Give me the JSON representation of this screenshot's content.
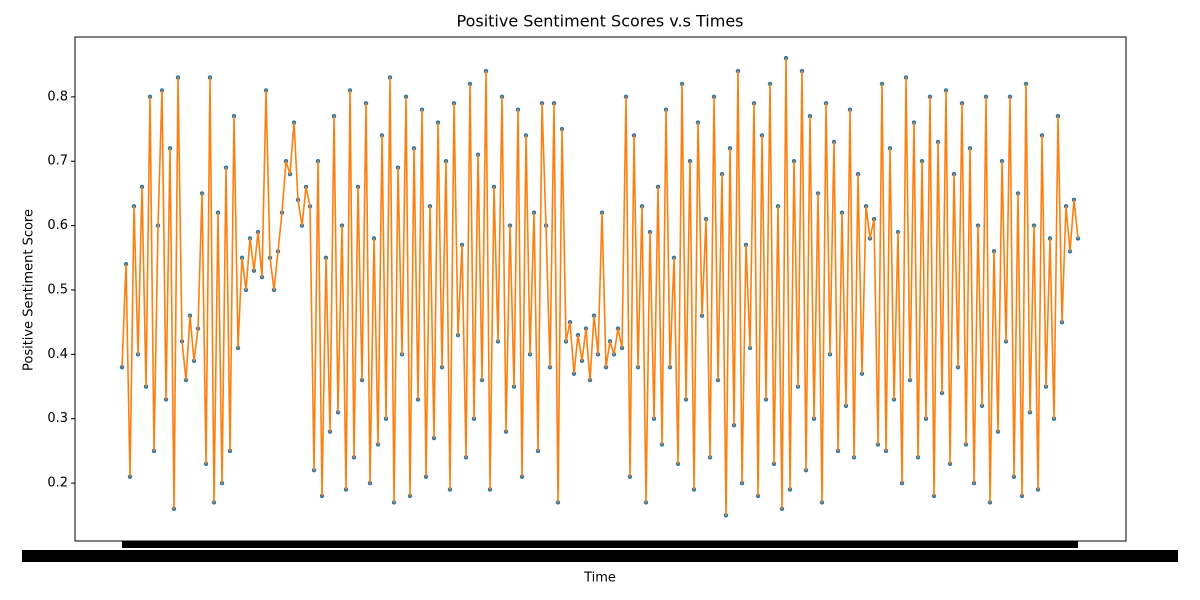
{
  "chart_data": {
    "type": "line",
    "title": "Positive Sentiment Scores v.s Times",
    "xlabel": "Time",
    "ylabel": "Positive Sentiment Score",
    "ylim": [
      0.11,
      0.893
    ],
    "yticks": [
      0.2,
      0.3,
      0.4,
      0.5,
      0.6,
      0.7,
      0.8
    ],
    "series": [
      {
        "line_color": "#ff7f0e",
        "marker_color": "#1f77b4",
        "values": [
          0.38,
          0.54,
          0.21,
          0.63,
          0.4,
          0.66,
          0.35,
          0.8,
          0.25,
          0.6,
          0.81,
          0.33,
          0.72,
          0.16,
          0.83,
          0.42,
          0.36,
          0.46,
          0.39,
          0.44,
          0.65,
          0.23,
          0.83,
          0.17,
          0.62,
          0.2,
          0.69,
          0.25,
          0.77,
          0.41,
          0.55,
          0.5,
          0.58,
          0.53,
          0.59,
          0.52,
          0.81,
          0.55,
          0.5,
          0.56,
          0.62,
          0.7,
          0.68,
          0.76,
          0.64,
          0.6,
          0.66,
          0.63,
          0.22,
          0.7,
          0.18,
          0.55,
          0.28,
          0.77,
          0.31,
          0.6,
          0.19,
          0.81,
          0.24,
          0.66,
          0.36,
          0.79,
          0.2,
          0.58,
          0.26,
          0.74,
          0.3,
          0.83,
          0.17,
          0.69,
          0.4,
          0.8,
          0.18,
          0.72,
          0.33,
          0.78,
          0.21,
          0.63,
          0.27,
          0.76,
          0.38,
          0.7,
          0.19,
          0.79,
          0.43,
          0.57,
          0.24,
          0.82,
          0.3,
          0.71,
          0.36,
          0.84,
          0.19,
          0.66,
          0.42,
          0.8,
          0.28,
          0.6,
          0.35,
          0.78,
          0.21,
          0.74,
          0.4,
          0.62,
          0.25,
          0.79,
          0.6,
          0.38,
          0.79,
          0.17,
          0.75,
          0.42,
          0.45,
          0.37,
          0.43,
          0.39,
          0.44,
          0.36,
          0.46,
          0.4,
          0.62,
          0.38,
          0.42,
          0.4,
          0.44,
          0.41,
          0.8,
          0.21,
          0.74,
          0.38,
          0.63,
          0.17,
          0.59,
          0.3,
          0.66,
          0.26,
          0.78,
          0.38,
          0.55,
          0.23,
          0.82,
          0.33,
          0.7,
          0.19,
          0.76,
          0.46,
          0.61,
          0.24,
          0.8,
          0.36,
          0.68,
          0.15,
          0.72,
          0.29,
          0.84,
          0.2,
          0.57,
          0.41,
          0.79,
          0.18,
          0.74,
          0.33,
          0.82,
          0.23,
          0.63,
          0.16,
          0.86,
          0.19,
          0.7,
          0.35,
          0.84,
          0.22,
          0.77,
          0.3,
          0.65,
          0.17,
          0.79,
          0.4,
          0.73,
          0.25,
          0.62,
          0.32,
          0.78,
          0.24,
          0.68,
          0.37,
          0.63,
          0.58,
          0.61,
          0.26,
          0.82,
          0.25,
          0.72,
          0.33,
          0.59,
          0.2,
          0.83,
          0.36,
          0.76,
          0.24,
          0.7,
          0.3,
          0.8,
          0.18,
          0.73,
          0.34,
          0.81,
          0.23,
          0.68,
          0.38,
          0.79,
          0.26,
          0.72,
          0.2,
          0.6,
          0.32,
          0.8,
          0.17,
          0.56,
          0.28,
          0.7,
          0.42,
          0.8,
          0.21,
          0.65,
          0.18,
          0.82,
          0.31,
          0.6,
          0.19,
          0.74,
          0.35,
          0.58,
          0.3,
          0.77,
          0.45,
          0.63,
          0.56,
          0.64,
          0.58
        ]
      }
    ]
  }
}
